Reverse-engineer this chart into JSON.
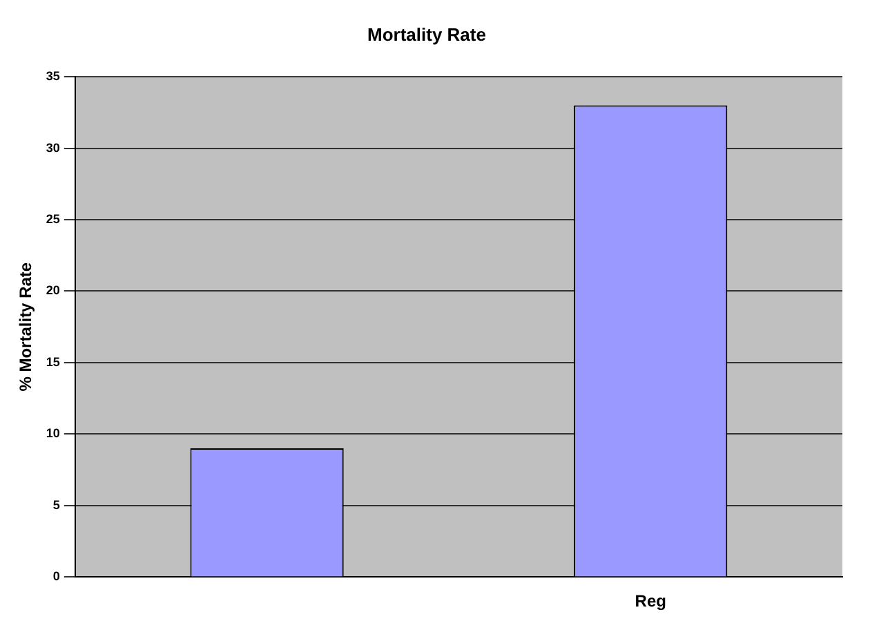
{
  "chart_data": {
    "type": "bar",
    "title": "Mortality Rate",
    "ylabel": "% Mortality Rate",
    "categories": [
      null,
      "Reg"
    ],
    "values": [
      9,
      33
    ],
    "color": "#9999ff",
    "ylim": [
      0,
      35
    ],
    "yticks": [
      0,
      5,
      10,
      15,
      20,
      25,
      30,
      35
    ],
    "grid": "y",
    "legend": false
  }
}
